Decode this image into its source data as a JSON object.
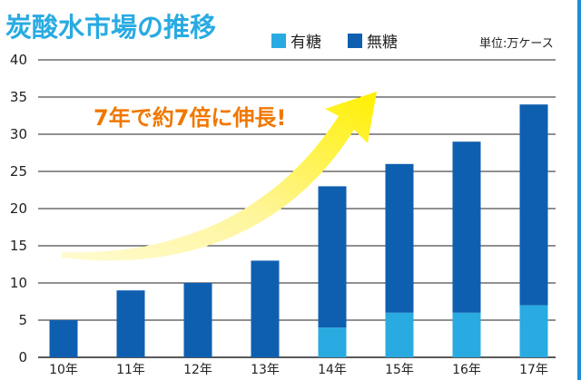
{
  "chart_data": {
    "type": "bar",
    "stacked": true,
    "title": "炭酸水市場の推移",
    "unit": "単位:万ケース",
    "annotation": "7年で約7倍に伸長!",
    "categories": [
      "10年",
      "11年",
      "12年",
      "13年",
      "14年",
      "15年",
      "16年",
      "17年"
    ],
    "series": [
      {
        "name": "有糖",
        "color": "#29abe2",
        "values": [
          0,
          0,
          0,
          0,
          4,
          6,
          6,
          7
        ]
      },
      {
        "name": "無糖",
        "color": "#0f5fb0",
        "values": [
          5,
          9,
          10,
          13,
          19,
          20,
          23,
          27
        ]
      }
    ],
    "ylim": [
      0,
      40
    ],
    "yticks": [
      0,
      5,
      10,
      15,
      20,
      25,
      30,
      35,
      40
    ],
    "grid": true,
    "legend_position": "top",
    "colors": {
      "title": "#29abe2",
      "annotation": "#f07800",
      "arrow": "#fff200",
      "grid": "#222222"
    }
  }
}
